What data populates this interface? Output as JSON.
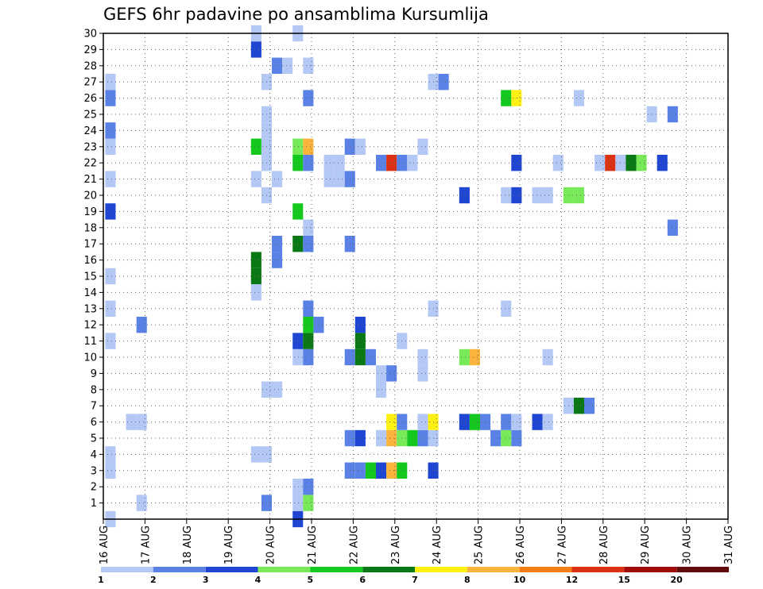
{
  "chart_data": {
    "type": "heatmap",
    "title": "GEFS 6hr padavine po ansamblima Kursumlija",
    "x_labels": [
      "16 AUG",
      "17 AUG",
      "18 AUG",
      "19 AUG",
      "20 AUG",
      "21 AUG",
      "22 AUG",
      "23 AUG",
      "24 AUG",
      "25 AUG",
      "26 AUG",
      "27 AUG",
      "28 AUG",
      "29 AUG",
      "30 AUG",
      "31 AUG"
    ],
    "y_labels": [
      "1",
      "2",
      "3",
      "4",
      "5",
      "6",
      "7",
      "8",
      "9",
      "10",
      "11",
      "12",
      "13",
      "14",
      "15",
      "16",
      "17",
      "18",
      "19",
      "20",
      "21",
      "22",
      "23",
      "24",
      "25",
      "26",
      "27",
      "28",
      "29",
      "30"
    ],
    "xlim": [
      0,
      15
    ],
    "ylim": [
      0,
      30
    ],
    "grid": true,
    "colorbar": {
      "labels": [
        "1",
        "2",
        "3",
        "4",
        "5",
        "6",
        "7",
        "8",
        "10",
        "12",
        "15",
        "20"
      ],
      "colors": [
        "#b4c8f5",
        "#5a82e6",
        "#1e46d2",
        "#78ea5a",
        "#14c81e",
        "#0a7814",
        "#fff014",
        "#fab43c",
        "#f57d14",
        "#dc3214",
        "#a00a0a",
        "#640a0a"
      ]
    },
    "cells": [
      {
        "x": 0.17,
        "y": 0,
        "c": 0
      },
      {
        "x": 0.17,
        "y": 3,
        "c": 0
      },
      {
        "x": 0.17,
        "y": 4,
        "c": 0
      },
      {
        "x": 0.17,
        "y": 11,
        "c": 0
      },
      {
        "x": 0.17,
        "y": 13,
        "c": 0
      },
      {
        "x": 0.17,
        "y": 15,
        "c": 0
      },
      {
        "x": 0.17,
        "y": 19,
        "c": 2
      },
      {
        "x": 0.17,
        "y": 21,
        "c": 0
      },
      {
        "x": 0.17,
        "y": 23,
        "c": 0
      },
      {
        "x": 0.17,
        "y": 24,
        "c": 1
      },
      {
        "x": 0.17,
        "y": 26,
        "c": 1
      },
      {
        "x": 0.17,
        "y": 27,
        "c": 0
      },
      {
        "x": 0.67,
        "y": 6,
        "c": 0
      },
      {
        "x": 0.92,
        "y": 6,
        "c": 0
      },
      {
        "x": 0.92,
        "y": 1,
        "c": 0
      },
      {
        "x": 0.92,
        "y": 12,
        "c": 1
      },
      {
        "x": 3.67,
        "y": 15,
        "c": 5
      },
      {
        "x": 3.67,
        "y": 16,
        "c": 5
      },
      {
        "x": 3.67,
        "y": 14,
        "c": 0
      },
      {
        "x": 3.67,
        "y": 23,
        "c": 4
      },
      {
        "x": 3.67,
        "y": 21,
        "c": 0
      },
      {
        "x": 3.67,
        "y": 29,
        "c": 2
      },
      {
        "x": 3.67,
        "y": 30,
        "c": 0
      },
      {
        "x": 3.92,
        "y": 1,
        "c": 1
      },
      {
        "x": 3.92,
        "y": 4,
        "c": 0
      },
      {
        "x": 3.92,
        "y": 8,
        "c": 0
      },
      {
        "x": 3.92,
        "y": 20,
        "c": 0
      },
      {
        "x": 3.92,
        "y": 22,
        "c": 0
      },
      {
        "x": 3.92,
        "y": 23,
        "c": 0
      },
      {
        "x": 3.92,
        "y": 24,
        "c": 0
      },
      {
        "x": 3.92,
        "y": 25,
        "c": 0
      },
      {
        "x": 3.92,
        "y": 27,
        "c": 0
      },
      {
        "x": 3.67,
        "y": 4,
        "c": 0
      },
      {
        "x": 4.17,
        "y": 8,
        "c": 0
      },
      {
        "x": 4.17,
        "y": 16,
        "c": 1
      },
      {
        "x": 4.17,
        "y": 17,
        "c": 1
      },
      {
        "x": 4.17,
        "y": 21,
        "c": 0
      },
      {
        "x": 4.17,
        "y": 28,
        "c": 1
      },
      {
        "x": 4.42,
        "y": 28,
        "c": 0
      },
      {
        "x": 4.67,
        "y": 0,
        "c": 2
      },
      {
        "x": 4.67,
        "y": 1,
        "c": 0
      },
      {
        "x": 4.67,
        "y": 2,
        "c": 0
      },
      {
        "x": 4.67,
        "y": 10,
        "c": 0
      },
      {
        "x": 4.67,
        "y": 11,
        "c": 2
      },
      {
        "x": 4.67,
        "y": 17,
        "c": 5
      },
      {
        "x": 4.67,
        "y": 19,
        "c": 4
      },
      {
        "x": 4.67,
        "y": 22,
        "c": 4
      },
      {
        "x": 4.67,
        "y": 23,
        "c": 3
      },
      {
        "x": 4.67,
        "y": 30,
        "c": 0
      },
      {
        "x": 4.92,
        "y": 1,
        "c": 3
      },
      {
        "x": 4.92,
        "y": 2,
        "c": 1
      },
      {
        "x": 4.92,
        "y": 10,
        "c": 1
      },
      {
        "x": 4.92,
        "y": 11,
        "c": 5
      },
      {
        "x": 4.92,
        "y": 12,
        "c": 4
      },
      {
        "x": 4.92,
        "y": 13,
        "c": 1
      },
      {
        "x": 4.92,
        "y": 17,
        "c": 1
      },
      {
        "x": 4.92,
        "y": 18,
        "c": 0
      },
      {
        "x": 4.92,
        "y": 22,
        "c": 1
      },
      {
        "x": 4.92,
        "y": 23,
        "c": 7
      },
      {
        "x": 4.92,
        "y": 26,
        "c": 1
      },
      {
        "x": 4.92,
        "y": 28,
        "c": 0
      },
      {
        "x": 5.17,
        "y": 12,
        "c": 1
      },
      {
        "x": 5.42,
        "y": 21,
        "c": 0
      },
      {
        "x": 5.42,
        "y": 22,
        "c": 0
      },
      {
        "x": 5.67,
        "y": 21,
        "c": 0
      },
      {
        "x": 5.67,
        "y": 22,
        "c": 0
      },
      {
        "x": 5.92,
        "y": 17,
        "c": 1
      },
      {
        "x": 5.92,
        "y": 21,
        "c": 1
      },
      {
        "x": 5.92,
        "y": 23,
        "c": 1
      },
      {
        "x": 6.17,
        "y": 23,
        "c": 0
      },
      {
        "x": 5.92,
        "y": 3,
        "c": 1
      },
      {
        "x": 5.92,
        "y": 5,
        "c": 1
      },
      {
        "x": 5.92,
        "y": 10,
        "c": 1
      },
      {
        "x": 6.17,
        "y": 3,
        "c": 1
      },
      {
        "x": 6.17,
        "y": 5,
        "c": 2
      },
      {
        "x": 6.17,
        "y": 10,
        "c": 5
      },
      {
        "x": 6.17,
        "y": 11,
        "c": 5
      },
      {
        "x": 6.17,
        "y": 12,
        "c": 2
      },
      {
        "x": 6.42,
        "y": 3,
        "c": 4
      },
      {
        "x": 6.42,
        "y": 10,
        "c": 1
      },
      {
        "x": 6.67,
        "y": 3,
        "c": 2
      },
      {
        "x": 6.67,
        "y": 5,
        "c": 0
      },
      {
        "x": 6.67,
        "y": 8,
        "c": 0
      },
      {
        "x": 6.67,
        "y": 9,
        "c": 0
      },
      {
        "x": 6.92,
        "y": 3,
        "c": 7
      },
      {
        "x": 6.92,
        "y": 5,
        "c": 7
      },
      {
        "x": 6.92,
        "y": 6,
        "c": 6
      },
      {
        "x": 6.92,
        "y": 9,
        "c": 1
      },
      {
        "x": 7.17,
        "y": 3,
        "c": 4
      },
      {
        "x": 7.17,
        "y": 5,
        "c": 3
      },
      {
        "x": 7.17,
        "y": 6,
        "c": 1
      },
      {
        "x": 7.17,
        "y": 11,
        "c": 0
      },
      {
        "x": 7.42,
        "y": 5,
        "c": 4
      },
      {
        "x": 7.67,
        "y": 5,
        "c": 1
      },
      {
        "x": 7.67,
        "y": 6,
        "c": 0
      },
      {
        "x": 7.67,
        "y": 9,
        "c": 0
      },
      {
        "x": 7.67,
        "y": 10,
        "c": 0
      },
      {
        "x": 7.92,
        "y": 3,
        "c": 2
      },
      {
        "x": 7.92,
        "y": 5,
        "c": 0
      },
      {
        "x": 7.92,
        "y": 6,
        "c": 6
      },
      {
        "x": 7.92,
        "y": 13,
        "c": 0
      },
      {
        "x": 7.67,
        "y": 23,
        "c": 0
      },
      {
        "x": 6.67,
        "y": 22,
        "c": 1
      },
      {
        "x": 6.92,
        "y": 22,
        "c": 9
      },
      {
        "x": 7.17,
        "y": 22,
        "c": 1
      },
      {
        "x": 7.42,
        "y": 22,
        "c": 0
      },
      {
        "x": 7.92,
        "y": 27,
        "c": 0
      },
      {
        "x": 8.17,
        "y": 27,
        "c": 1
      },
      {
        "x": 8.67,
        "y": 6,
        "c": 2
      },
      {
        "x": 8.92,
        "y": 6,
        "c": 4
      },
      {
        "x": 9.17,
        "y": 6,
        "c": 1
      },
      {
        "x": 8.67,
        "y": 10,
        "c": 3
      },
      {
        "x": 8.92,
        "y": 10,
        "c": 7
      },
      {
        "x": 8.67,
        "y": 20,
        "c": 2
      },
      {
        "x": 9.42,
        "y": 5,
        "c": 1
      },
      {
        "x": 9.67,
        "y": 5,
        "c": 3
      },
      {
        "x": 9.67,
        "y": 6,
        "c": 1
      },
      {
        "x": 9.92,
        "y": 5,
        "c": 1
      },
      {
        "x": 9.92,
        "y": 6,
        "c": 0
      },
      {
        "x": 9.67,
        "y": 13,
        "c": 0
      },
      {
        "x": 9.67,
        "y": 20,
        "c": 0
      },
      {
        "x": 9.92,
        "y": 20,
        "c": 2
      },
      {
        "x": 9.92,
        "y": 22,
        "c": 2
      },
      {
        "x": 9.67,
        "y": 26,
        "c": 4
      },
      {
        "x": 9.92,
        "y": 26,
        "c": 6
      },
      {
        "x": 10.42,
        "y": 6,
        "c": 2
      },
      {
        "x": 10.67,
        "y": 6,
        "c": 0
      },
      {
        "x": 10.67,
        "y": 10,
        "c": 0
      },
      {
        "x": 10.42,
        "y": 20,
        "c": 0
      },
      {
        "x": 10.67,
        "y": 20,
        "c": 0
      },
      {
        "x": 10.92,
        "y": 22,
        "c": 0
      },
      {
        "x": 11.17,
        "y": 7,
        "c": 0
      },
      {
        "x": 11.42,
        "y": 7,
        "c": 5
      },
      {
        "x": 11.17,
        "y": 20,
        "c": 3
      },
      {
        "x": 11.42,
        "y": 20,
        "c": 3
      },
      {
        "x": 11.42,
        "y": 26,
        "c": 0
      },
      {
        "x": 11.67,
        "y": 7,
        "c": 1
      },
      {
        "x": 11.92,
        "y": 22,
        "c": 0
      },
      {
        "x": 12.17,
        "y": 22,
        "c": 9
      },
      {
        "x": 12.42,
        "y": 22,
        "c": 0
      },
      {
        "x": 12.67,
        "y": 22,
        "c": 5
      },
      {
        "x": 12.92,
        "y": 22,
        "c": 3
      },
      {
        "x": 13.42,
        "y": 22,
        "c": 2
      },
      {
        "x": 13.17,
        "y": 25,
        "c": 0
      },
      {
        "x": 13.67,
        "y": 25,
        "c": 1
      },
      {
        "x": 13.67,
        "y": 18,
        "c": 1
      }
    ]
  }
}
